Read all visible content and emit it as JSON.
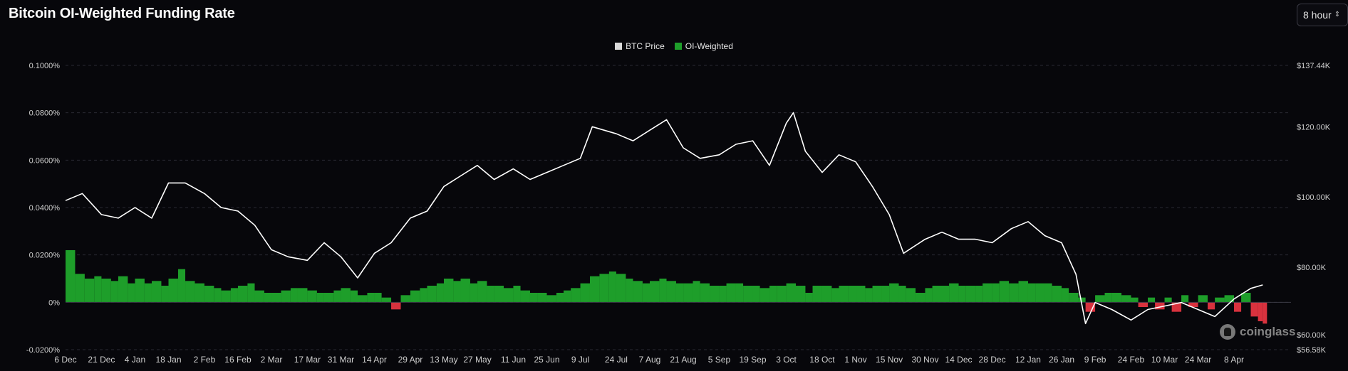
{
  "title": "Bitcoin OI-Weighted Funding Rate",
  "interval": {
    "value": "8 hour",
    "icon": "updown-chevron-icon"
  },
  "watermark": {
    "text": "coinglass",
    "icon": "coinglass-logo-icon"
  },
  "colors": {
    "background": "#07070b",
    "price_line": "#ffffff",
    "positive": "#1e9e2a",
    "negative": "#d8323e",
    "grid": "#2a2a33",
    "axis_text": "#cfcfcf"
  },
  "chart_data": {
    "type": "bar",
    "legend": [
      {
        "name": "BTC Price",
        "color": "#d9d9d9"
      },
      {
        "name": "OI-Weighted",
        "color": "#1e9e2a"
      }
    ],
    "legend_position": "top-center",
    "grid": true,
    "x_ticks": [
      "6 Dec",
      "21 Dec",
      "4 Jan",
      "18 Jan",
      "2 Feb",
      "16 Feb",
      "2 Mar",
      "17 Mar",
      "31 Mar",
      "14 Apr",
      "29 Apr",
      "13 May",
      "27 May",
      "11 Jun",
      "25 Jun",
      "9 Jul",
      "24 Jul",
      "7 Aug",
      "21 Aug",
      "5 Sep",
      "19 Sep",
      "3 Oct",
      "18 Oct",
      "1 Nov",
      "15 Nov",
      "30 Nov",
      "14 Dec",
      "28 Dec",
      "12 Jan",
      "26 Jan",
      "9 Feb",
      "24 Feb",
      "10 Mar",
      "24 Mar",
      "8 Apr"
    ],
    "y_left": {
      "label": "",
      "ticks": [
        "0.1000%",
        "0.0800%",
        "0.0600%",
        "0.0400%",
        "0.0200%",
        "0%",
        "-0.0200%"
      ],
      "range": [
        -0.02,
        0.1
      ],
      "unit": "%"
    },
    "y_right": {
      "label": "",
      "ticks": [
        "$137.44K",
        "$120.00K",
        "$100.00K",
        "$80.00K",
        "$60.00K",
        "$56.58K"
      ],
      "range": [
        56.58,
        137.44
      ],
      "unit": "K USD"
    },
    "series": [
      {
        "name": "BTC Price",
        "type": "line",
        "axis": "right",
        "points": [
          [
            "6 Dec",
            99
          ],
          [
            "13 Dec",
            101
          ],
          [
            "21 Dec",
            95
          ],
          [
            "28 Dec",
            94
          ],
          [
            "4 Jan",
            97
          ],
          [
            "11 Jan",
            94
          ],
          [
            "18 Jan",
            104
          ],
          [
            "25 Jan",
            104
          ],
          [
            "2 Feb",
            101
          ],
          [
            "9 Feb",
            97
          ],
          [
            "16 Feb",
            96
          ],
          [
            "23 Feb",
            92
          ],
          [
            "2 Mar",
            85
          ],
          [
            "9 Mar",
            83
          ],
          [
            "17 Mar",
            82
          ],
          [
            "24 Mar",
            87
          ],
          [
            "31 Mar",
            83
          ],
          [
            "7 Apr",
            77
          ],
          [
            "14 Apr",
            84
          ],
          [
            "21 Apr",
            87
          ],
          [
            "29 Apr",
            94
          ],
          [
            "6 May",
            96
          ],
          [
            "13 May",
            103
          ],
          [
            "20 May",
            106
          ],
          [
            "27 May",
            109
          ],
          [
            "3 Jun",
            105
          ],
          [
            "11 Jun",
            108
          ],
          [
            "18 Jun",
            105
          ],
          [
            "25 Jun",
            107
          ],
          [
            "2 Jul",
            109
          ],
          [
            "9 Jul",
            111
          ],
          [
            "14 Jul",
            120
          ],
          [
            "24 Jul",
            118
          ],
          [
            "31 Jul",
            116
          ],
          [
            "7 Aug",
            119
          ],
          [
            "14 Aug",
            122
          ],
          [
            "21 Aug",
            114
          ],
          [
            "28 Aug",
            111
          ],
          [
            "5 Sep",
            112
          ],
          [
            "12 Sep",
            115
          ],
          [
            "19 Sep",
            116
          ],
          [
            "26 Sep",
            109
          ],
          [
            "3 Oct",
            121
          ],
          [
            "6 Oct",
            124
          ],
          [
            "11 Oct",
            113
          ],
          [
            "18 Oct",
            107
          ],
          [
            "25 Oct",
            112
          ],
          [
            "1 Nov",
            110
          ],
          [
            "8 Nov",
            103
          ],
          [
            "15 Nov",
            95
          ],
          [
            "21 Nov",
            84
          ],
          [
            "30 Nov",
            88
          ],
          [
            "7 Dec",
            90
          ],
          [
            "14 Dec",
            88
          ],
          [
            "21 Dec",
            88
          ],
          [
            "28 Dec",
            87
          ],
          [
            "5 Jan",
            91
          ],
          [
            "12 Jan",
            93
          ],
          [
            "19 Jan",
            89
          ],
          [
            "26 Jan",
            87
          ],
          [
            "1 Feb",
            78
          ],
          [
            "5 Feb",
            64
          ],
          [
            "9 Feb",
            70
          ],
          [
            "16 Feb",
            68
          ],
          [
            "24 Feb",
            65
          ],
          [
            "3 Mar",
            68
          ],
          [
            "10 Mar",
            69
          ],
          [
            "17 Mar",
            70
          ],
          [
            "24 Mar",
            68
          ],
          [
            "31 Mar",
            66
          ],
          [
            "8 Apr",
            71
          ],
          [
            "15 Apr",
            74
          ],
          [
            "20 Apr",
            75
          ]
        ]
      },
      {
        "name": "OI-Weighted",
        "type": "bar",
        "axis": "left",
        "unit": "%",
        "points": [
          [
            "6 Dec",
            0.022
          ],
          [
            "10 Dec",
            0.012
          ],
          [
            "14 Dec",
            0.01
          ],
          [
            "18 Dec",
            0.011
          ],
          [
            "21 Dec",
            0.01
          ],
          [
            "25 Dec",
            0.009
          ],
          [
            "28 Dec",
            0.011
          ],
          [
            "1 Jan",
            0.008
          ],
          [
            "4 Jan",
            0.01
          ],
          [
            "8 Jan",
            0.008
          ],
          [
            "11 Jan",
            0.009
          ],
          [
            "15 Jan",
            0.007
          ],
          [
            "18 Jan",
            0.01
          ],
          [
            "22 Jan",
            0.014
          ],
          [
            "25 Jan",
            0.009
          ],
          [
            "29 Jan",
            0.008
          ],
          [
            "2 Feb",
            0.007
          ],
          [
            "6 Feb",
            0.006
          ],
          [
            "9 Feb",
            0.005
          ],
          [
            "13 Feb",
            0.006
          ],
          [
            "16 Feb",
            0.007
          ],
          [
            "20 Feb",
            0.008
          ],
          [
            "23 Feb",
            0.005
          ],
          [
            "27 Feb",
            0.004
          ],
          [
            "2 Mar",
            0.004
          ],
          [
            "6 Mar",
            0.005
          ],
          [
            "10 Mar",
            0.006
          ],
          [
            "13 Mar",
            0.006
          ],
          [
            "17 Mar",
            0.005
          ],
          [
            "21 Mar",
            0.004
          ],
          [
            "24 Mar",
            0.004
          ],
          [
            "28 Mar",
            0.005
          ],
          [
            "31 Mar",
            0.006
          ],
          [
            "4 Apr",
            0.005
          ],
          [
            "7 Apr",
            0.003
          ],
          [
            "11 Apr",
            0.004
          ],
          [
            "14 Apr",
            0.004
          ],
          [
            "17 Apr",
            0.002
          ],
          [
            "21 Apr",
            -0.003
          ],
          [
            "25 Apr",
            0.003
          ],
          [
            "29 Apr",
            0.005
          ],
          [
            "3 May",
            0.006
          ],
          [
            "6 May",
            0.007
          ],
          [
            "10 May",
            0.008
          ],
          [
            "13 May",
            0.01
          ],
          [
            "17 May",
            0.009
          ],
          [
            "20 May",
            0.01
          ],
          [
            "24 May",
            0.008
          ],
          [
            "27 May",
            0.009
          ],
          [
            "31 May",
            0.007
          ],
          [
            "3 Jun",
            0.007
          ],
          [
            "7 Jun",
            0.006
          ],
          [
            "11 Jun",
            0.007
          ],
          [
            "14 Jun",
            0.005
          ],
          [
            "18 Jun",
            0.004
          ],
          [
            "21 Jun",
            0.004
          ],
          [
            "25 Jun",
            0.003
          ],
          [
            "29 Jun",
            0.004
          ],
          [
            "2 Jul",
            0.005
          ],
          [
            "5 Jul",
            0.006
          ],
          [
            "9 Jul",
            0.008
          ],
          [
            "13 Jul",
            0.011
          ],
          [
            "17 Jul",
            0.012
          ],
          [
            "21 Jul",
            0.013
          ],
          [
            "24 Jul",
            0.012
          ],
          [
            "28 Jul",
            0.01
          ],
          [
            "31 Jul",
            0.009
          ],
          [
            "4 Aug",
            0.008
          ],
          [
            "7 Aug",
            0.009
          ],
          [
            "11 Aug",
            0.01
          ],
          [
            "14 Aug",
            0.009
          ],
          [
            "18 Aug",
            0.008
          ],
          [
            "21 Aug",
            0.008
          ],
          [
            "25 Aug",
            0.009
          ],
          [
            "28 Aug",
            0.008
          ],
          [
            "1 Sep",
            0.007
          ],
          [
            "5 Sep",
            0.007
          ],
          [
            "8 Sep",
            0.008
          ],
          [
            "12 Sep",
            0.008
          ],
          [
            "15 Sep",
            0.007
          ],
          [
            "19 Sep",
            0.007
          ],
          [
            "22 Sep",
            0.006
          ],
          [
            "26 Sep",
            0.007
          ],
          [
            "29 Sep",
            0.007
          ],
          [
            "3 Oct",
            0.008
          ],
          [
            "7 Oct",
            0.007
          ],
          [
            "11 Oct",
            0.004
          ],
          [
            "14 Oct",
            0.007
          ],
          [
            "18 Oct",
            0.007
          ],
          [
            "22 Oct",
            0.006
          ],
          [
            "25 Oct",
            0.007
          ],
          [
            "29 Oct",
            0.007
          ],
          [
            "1 Nov",
            0.007
          ],
          [
            "5 Nov",
            0.006
          ],
          [
            "8 Nov",
            0.007
          ],
          [
            "12 Nov",
            0.007
          ],
          [
            "15 Nov",
            0.008
          ],
          [
            "19 Nov",
            0.007
          ],
          [
            "22 Nov",
            0.006
          ],
          [
            "26 Nov",
            0.004
          ],
          [
            "30 Nov",
            0.006
          ],
          [
            "3 Dec",
            0.007
          ],
          [
            "7 Dec",
            0.007
          ],
          [
            "10 Dec",
            0.008
          ],
          [
            "14 Dec",
            0.007
          ],
          [
            "17 Dec",
            0.007
          ],
          [
            "21 Dec",
            0.007
          ],
          [
            "24 Dec",
            0.008
          ],
          [
            "28 Dec",
            0.008
          ],
          [
            "31 Dec",
            0.009
          ],
          [
            "4 Jan",
            0.008
          ],
          [
            "8 Jan",
            0.009
          ],
          [
            "12 Jan",
            0.008
          ],
          [
            "15 Jan",
            0.008
          ],
          [
            "19 Jan",
            0.008
          ],
          [
            "22 Jan",
            0.007
          ],
          [
            "26 Jan",
            0.006
          ],
          [
            "29 Jan",
            0.004
          ],
          [
            "2 Feb",
            0.002
          ],
          [
            "5 Feb",
            -0.004
          ],
          [
            "9 Feb",
            0.003
          ],
          [
            "13 Feb",
            0.004
          ],
          [
            "16 Feb",
            0.004
          ],
          [
            "20 Feb",
            0.003
          ],
          [
            "24 Feb",
            0.002
          ],
          [
            "27 Feb",
            -0.002
          ],
          [
            "3 Mar",
            0.002
          ],
          [
            "6 Mar",
            -0.003
          ],
          [
            "10 Mar",
            0.002
          ],
          [
            "13 Mar",
            -0.004
          ],
          [
            "17 Mar",
            0.003
          ],
          [
            "20 Mar",
            -0.002
          ],
          [
            "24 Mar",
            0.003
          ],
          [
            "28 Mar",
            -0.003
          ],
          [
            "31 Mar",
            0.002
          ],
          [
            "4 Apr",
            0.003
          ],
          [
            "8 Apr",
            -0.004
          ],
          [
            "11 Apr",
            0.004
          ],
          [
            "15 Apr",
            -0.006
          ],
          [
            "18 Apr",
            -0.008
          ],
          [
            "20 Apr",
            -0.009
          ]
        ]
      }
    ]
  }
}
